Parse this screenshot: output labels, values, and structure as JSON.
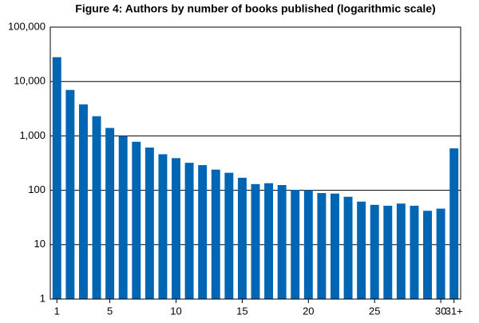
{
  "chart_data": {
    "type": "bar",
    "title": "Figure 4: Authors by number of books published (logarithmic scale)",
    "categories": [
      "1",
      null,
      null,
      null,
      "5",
      null,
      null,
      null,
      null,
      "10",
      null,
      null,
      null,
      null,
      "15",
      null,
      null,
      null,
      null,
      "20",
      null,
      null,
      null,
      null,
      "25",
      null,
      null,
      null,
      null,
      "30",
      "31+"
    ],
    "values": [
      28000,
      7000,
      3800,
      2300,
      1400,
      1000,
      780,
      610,
      460,
      390,
      320,
      290,
      240,
      210,
      170,
      130,
      135,
      125,
      102,
      100,
      89,
      87,
      76,
      62,
      54,
      52,
      57,
      52,
      42,
      46,
      590
    ],
    "color": "#0066b3",
    "log_scale": true,
    "ylim": [
      1,
      100000
    ],
    "yticks": [
      1,
      10,
      100,
      {
        "value": 1000,
        "label": "1,000"
      },
      {
        "value": 10000,
        "label": "10,000"
      },
      {
        "value": 100000,
        "label": "100,000"
      }
    ],
    "grid": true
  }
}
